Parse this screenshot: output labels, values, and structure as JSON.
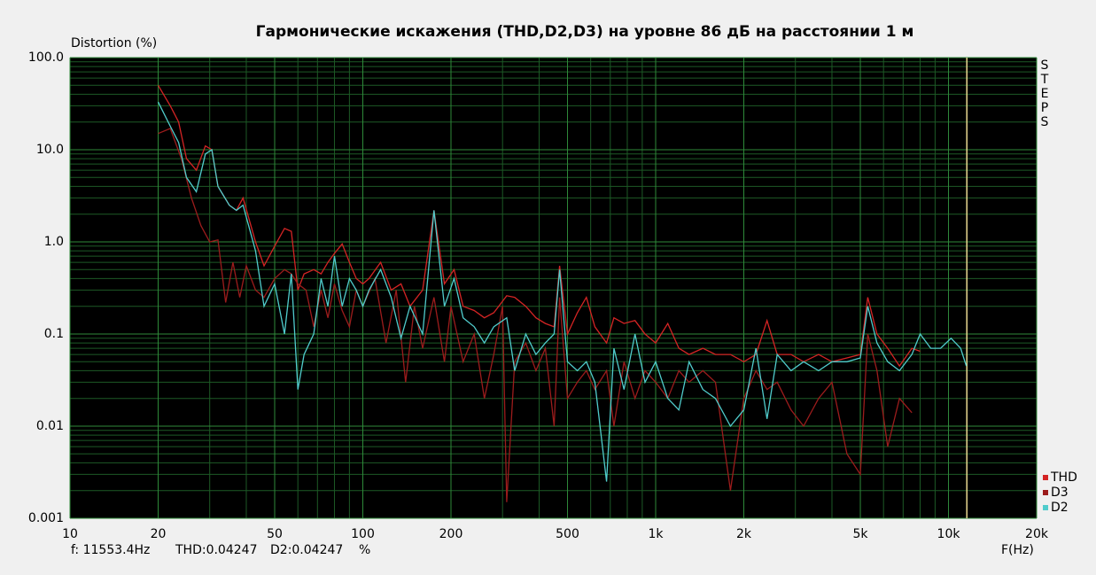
{
  "chart_data": {
    "type": "line",
    "title": "Гармонические искажения (THD,D2,D3) на уровне 86 дБ на расстоянии 1 м",
    "y_label": "Distortion (%)",
    "x_label": "F(Hz)",
    "side_label": "STEPS",
    "x_log": true,
    "y_log": true,
    "grid": true,
    "legend": "lower right",
    "xlim": [
      10,
      20000
    ],
    "ylim": [
      0.001,
      100
    ],
    "xticks": [
      10,
      20,
      50,
      100,
      200,
      500,
      {
        "value": 1000,
        "label": "1k"
      },
      {
        "value": 2000,
        "label": "2k"
      },
      {
        "value": 5000,
        "label": "5k"
      },
      {
        "value": 10000,
        "label": "10k"
      },
      {
        "value": 20000,
        "label": "20k"
      }
    ],
    "x_minor_ticks": [
      30,
      40,
      60,
      70,
      80,
      90,
      300,
      400,
      600,
      700,
      800,
      900,
      3000,
      4000,
      6000,
      7000,
      8000,
      9000
    ],
    "yticks": [
      {
        "value": 100,
        "label": "100.0"
      },
      {
        "value": 10,
        "label": "10.0"
      },
      {
        "value": 1,
        "label": "1.0"
      },
      0.1,
      0.01,
      0.001
    ],
    "y_minor_ticks": [
      0.002,
      0.003,
      0.004,
      0.005,
      0.006,
      0.007,
      0.008,
      0.009,
      0.02,
      0.03,
      0.04,
      0.05,
      0.06,
      0.07,
      0.08,
      0.09,
      0.2,
      0.3,
      0.4,
      0.5,
      0.6,
      0.7,
      0.8,
      0.9,
      2,
      3,
      4,
      5,
      6,
      7,
      8,
      9,
      20,
      30,
      40,
      50,
      60,
      70,
      80,
      90
    ],
    "cursor_x": 11553.4,
    "status": {
      "f": "f: 11553.4Hz",
      "thd": "THD:0.04247",
      "d2": "D2:0.04247",
      "unit": "%"
    },
    "series": [
      {
        "name": "THD",
        "color": "#d42424",
        "x": [
          20,
          22,
          23.5,
          25,
          27,
          29,
          30.5,
          32,
          35,
          37,
          39,
          43,
          46,
          50,
          54,
          57,
          60,
          63,
          68,
          72,
          76,
          80,
          85,
          90,
          95,
          100,
          105,
          115,
          125,
          135,
          145,
          160,
          175,
          190,
          205,
          220,
          240,
          260,
          280,
          310,
          330,
          360,
          390,
          420,
          450,
          470,
          500,
          540,
          580,
          620,
          680,
          720,
          780,
          850,
          920,
          1000,
          1100,
          1200,
          1300,
          1450,
          1600,
          1800,
          2000,
          2200,
          2400,
          2600,
          2900,
          3200,
          3600,
          4000,
          4500,
          5000,
          5300,
          5700,
          6200,
          6800,
          7500,
          8000
        ],
        "values": [
          50,
          30,
          20,
          8,
          6,
          11,
          10,
          4,
          2.5,
          2.2,
          3,
          1,
          0.55,
          0.9,
          1.4,
          1.3,
          0.3,
          0.45,
          0.5,
          0.45,
          0.6,
          0.75,
          0.95,
          0.6,
          0.4,
          0.35,
          0.4,
          0.6,
          0.3,
          0.35,
          0.2,
          0.3,
          2.2,
          0.35,
          0.5,
          0.2,
          0.18,
          0.15,
          0.17,
          0.26,
          0.25,
          0.2,
          0.15,
          0.13,
          0.12,
          0.55,
          0.1,
          0.17,
          0.25,
          0.12,
          0.08,
          0.15,
          0.13,
          0.14,
          0.1,
          0.08,
          0.13,
          0.07,
          0.06,
          0.07,
          0.06,
          0.06,
          0.05,
          0.06,
          0.14,
          0.06,
          0.06,
          0.05,
          0.06,
          0.05,
          0.055,
          0.06,
          0.25,
          0.1,
          0.07,
          0.045,
          0.07,
          0.065
        ]
      },
      {
        "name": "D3",
        "color": "#9c1c1c",
        "x": [
          20,
          22,
          24,
          26,
          28,
          30,
          32,
          34,
          36,
          38,
          40,
          43,
          46,
          50,
          54,
          57,
          60,
          64,
          68,
          72,
          76,
          80,
          85,
          90,
          95,
          100,
          110,
          120,
          130,
          140,
          150,
          160,
          175,
          190,
          200,
          220,
          240,
          260,
          280,
          300,
          310,
          330,
          360,
          390,
          420,
          450,
          470,
          500,
          540,
          580,
          620,
          680,
          720,
          780,
          850,
          920,
          1000,
          1100,
          1200,
          1300,
          1450,
          1600,
          1800,
          2000,
          2200,
          2400,
          2600,
          2900,
          3200,
          3600,
          4000,
          4500,
          5000,
          5300,
          5700,
          6200,
          6800,
          7500
        ],
        "values": [
          15,
          17,
          8,
          3,
          1.5,
          1,
          1.05,
          0.22,
          0.6,
          0.25,
          0.55,
          0.3,
          0.25,
          0.4,
          0.5,
          0.45,
          0.35,
          0.3,
          0.12,
          0.3,
          0.15,
          0.35,
          0.18,
          0.12,
          0.3,
          0.2,
          0.4,
          0.08,
          0.3,
          0.03,
          0.2,
          0.07,
          0.25,
          0.05,
          0.2,
          0.05,
          0.1,
          0.02,
          0.06,
          0.2,
          0.0015,
          0.05,
          0.08,
          0.04,
          0.07,
          0.01,
          0.25,
          0.02,
          0.03,
          0.04,
          0.025,
          0.04,
          0.01,
          0.05,
          0.02,
          0.04,
          0.03,
          0.02,
          0.04,
          0.03,
          0.04,
          0.03,
          0.002,
          0.02,
          0.04,
          0.025,
          0.03,
          0.015,
          0.01,
          0.02,
          0.03,
          0.005,
          0.003,
          0.1,
          0.04,
          0.006,
          0.02,
          0.014
        ]
      },
      {
        "name": "D2",
        "color": "#50cccc",
        "x": [
          20,
          22,
          23.5,
          25,
          27,
          29,
          30.5,
          32,
          35,
          37,
          39,
          43,
          46,
          50,
          54,
          57,
          60,
          63,
          68,
          72,
          76,
          80,
          85,
          90,
          95,
          100,
          105,
          115,
          125,
          135,
          145,
          160,
          175,
          190,
          205,
          220,
          240,
          260,
          280,
          310,
          330,
          360,
          390,
          420,
          450,
          470,
          500,
          540,
          580,
          620,
          680,
          720,
          780,
          850,
          920,
          1000,
          1100,
          1200,
          1300,
          1450,
          1600,
          1800,
          2000,
          2200,
          2400,
          2600,
          2900,
          3200,
          3600,
          4000,
          4500,
          5000,
          5300,
          5700,
          6200,
          6800,
          7500,
          8000,
          8700,
          9400,
          10200,
          11000,
          11500
        ],
        "values": [
          33,
          18,
          12,
          5,
          3.5,
          9,
          10,
          4,
          2.5,
          2.2,
          2.5,
          0.8,
          0.2,
          0.35,
          0.1,
          0.45,
          0.025,
          0.06,
          0.1,
          0.4,
          0.2,
          0.7,
          0.2,
          0.4,
          0.3,
          0.2,
          0.3,
          0.5,
          0.25,
          0.09,
          0.2,
          0.1,
          2.2,
          0.2,
          0.4,
          0.15,
          0.12,
          0.08,
          0.12,
          0.15,
          0.04,
          0.1,
          0.06,
          0.08,
          0.1,
          0.5,
          0.05,
          0.04,
          0.05,
          0.03,
          0.0025,
          0.07,
          0.025,
          0.1,
          0.03,
          0.05,
          0.02,
          0.015,
          0.05,
          0.025,
          0.02,
          0.01,
          0.015,
          0.07,
          0.012,
          0.06,
          0.04,
          0.05,
          0.04,
          0.05,
          0.05,
          0.055,
          0.2,
          0.08,
          0.05,
          0.04,
          0.06,
          0.1,
          0.07,
          0.07,
          0.09,
          0.07,
          0.045
        ]
      }
    ]
  }
}
